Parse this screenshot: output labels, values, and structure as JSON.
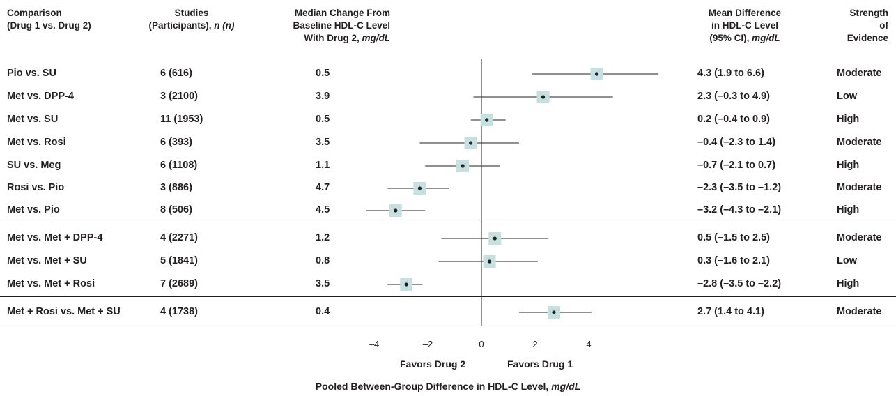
{
  "headers": {
    "comparison": [
      "Comparison",
      "(Drug 1 vs. Drug 2)"
    ],
    "studies": [
      "Studies",
      "(Participants), ",
      "n (n)"
    ],
    "median": [
      "Median Change From",
      "Baseline HDL-C Level",
      "With Drug 2, ",
      "mg/dL"
    ],
    "mean": [
      "Mean Difference",
      "in HDL-C Level",
      "(95% CI), ",
      "mg/dL"
    ],
    "strength": [
      "Strength",
      "of",
      "Evidence"
    ]
  },
  "rows": [
    {
      "comparison": "Pio vs. SU",
      "studies": "6 (616)",
      "median": "0.5",
      "ci_text": "4.3 (1.9 to 6.6)",
      "strength": "Moderate",
      "group": 1
    },
    {
      "comparison": "Met vs. DPP-4",
      "studies": "3 (2100)",
      "median": "3.9",
      "ci_text": "2.3 (–0.3 to 4.9)",
      "strength": "Low",
      "group": 1
    },
    {
      "comparison": "Met vs. SU",
      "studies": "11 (1953)",
      "median": "0.5",
      "ci_text": "0.2 (–0.4 to 0.9)",
      "strength": "High",
      "group": 1
    },
    {
      "comparison": "Met vs. Rosi",
      "studies": "6 (393)",
      "median": "3.5",
      "ci_text": "–0.4 (–2.3 to 1.4)",
      "strength": "Moderate",
      "group": 1
    },
    {
      "comparison": "SU vs. Meg",
      "studies": "6 (1108)",
      "median": "1.1",
      "ci_text": "–0.7 (–2.1 to 0.7)",
      "strength": "High",
      "group": 1
    },
    {
      "comparison": "Rosi vs. Pio",
      "studies": "3 (886)",
      "median": "4.7",
      "ci_text": "–2.3 (–3.5 to –1.2)",
      "strength": "Moderate",
      "group": 1
    },
    {
      "comparison": "Met vs. Pio",
      "studies": "8 (506)",
      "median": "4.5",
      "ci_text": "–3.2 (–4.3 to –2.1)",
      "strength": "High",
      "group": 1
    },
    {
      "comparison": "Met vs. Met + DPP-4",
      "studies": "4 (2271)",
      "median": "1.2",
      "ci_text": "0.5 (–1.5 to 2.5)",
      "strength": "Moderate",
      "group": 2
    },
    {
      "comparison": "Met vs. Met + SU",
      "studies": "5 (1841)",
      "median": "0.8",
      "ci_text": "0.3 (–1.6 to 2.1)",
      "strength": "Low",
      "group": 2
    },
    {
      "comparison": "Met vs. Met + Rosi",
      "studies": "7 (2689)",
      "median": "3.5",
      "ci_text": "–2.8 (–3.5 to –2.2)",
      "strength": "High",
      "group": 2
    },
    {
      "comparison": "Met + Rosi vs. Met + SU",
      "studies": "4 (1738)",
      "median": "0.4",
      "ci_text": "2.7 (1.4 to 4.1)",
      "strength": "Moderate",
      "group": 3
    }
  ],
  "chart_data": {
    "type": "scatter",
    "subtype": "forest",
    "categories": [
      "Pio vs. SU",
      "Met vs. DPP-4",
      "Met vs. SU",
      "Met vs. Rosi",
      "SU vs. Meg",
      "Rosi vs. Pio",
      "Met vs. Pio",
      "Met vs. Met + DPP-4",
      "Met vs. Met + SU",
      "Met vs. Met + Rosi",
      "Met + Rosi vs. Met + SU"
    ],
    "estimates": [
      4.3,
      2.3,
      0.2,
      -0.4,
      -0.7,
      -2.3,
      -3.2,
      0.5,
      0.3,
      -2.8,
      2.7
    ],
    "ci_low": [
      1.9,
      -0.3,
      -0.4,
      -2.3,
      -2.1,
      -3.5,
      -4.3,
      -1.5,
      -1.6,
      -3.5,
      1.4
    ],
    "ci_high": [
      6.6,
      4.9,
      0.9,
      1.4,
      0.7,
      -1.2,
      -2.1,
      2.5,
      2.1,
      -2.2,
      4.1
    ],
    "xlim": [
      -4.6,
      6.8
    ],
    "xticks": [
      -4,
      -2,
      0,
      2,
      4
    ],
    "xtick_labels": [
      "–4",
      "–2",
      "0",
      "2",
      "4"
    ],
    "xlabel": "Pooled Between-Group Difference in HDL-C Level, ",
    "xlabel_unit": "mg/dL",
    "favors_left": "Favors Drug 2",
    "favors_right": "Favors Drug 1",
    "reference_line": 0,
    "colors": {
      "marker_box": "#c6dfe0",
      "line": "#231f20"
    }
  }
}
